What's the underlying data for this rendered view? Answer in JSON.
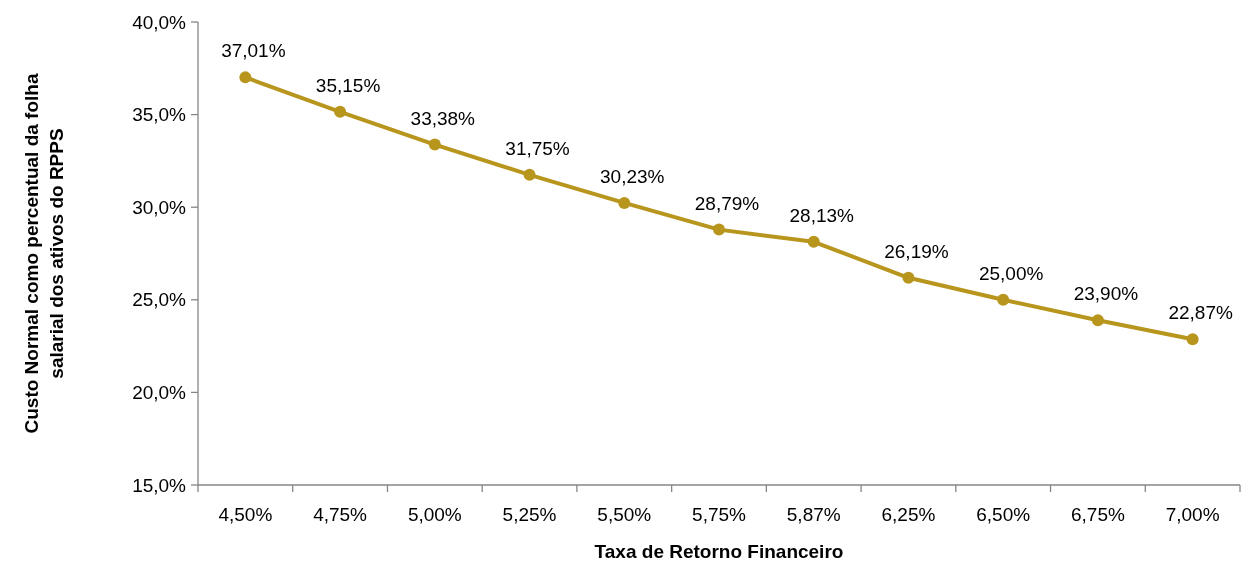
{
  "chart_data": {
    "type": "line",
    "xlabel": "Taxa de Retorno Financeiro",
    "ylabel": "Custo Normal como percentual da folha salarial dos ativos do RPPS",
    "categories": [
      "4,50%",
      "4,75%",
      "5,00%",
      "5,25%",
      "5,50%",
      "5,75%",
      "5,87%",
      "6,25%",
      "6,50%",
      "6,75%",
      "7,00%"
    ],
    "series": [
      {
        "color": "#b8961e",
        "values": [
          37.01,
          35.15,
          33.38,
          31.75,
          30.23,
          28.79,
          28.13,
          26.19,
          25.0,
          23.9,
          22.87
        ],
        "value_labels": [
          "37,01%",
          "35,15%",
          "33,38%",
          "31,75%",
          "30,23%",
          "28,79%",
          "28,13%",
          "26,19%",
          "25,00%",
          "23,90%",
          "22,87%"
        ]
      }
    ],
    "ylim": [
      15,
      40
    ],
    "yticks": [
      {
        "value": 15,
        "label": "15,0%"
      },
      {
        "value": 20,
        "label": "20,0%"
      },
      {
        "value": 25,
        "label": "25,0%"
      },
      {
        "value": 30,
        "label": "30,0%"
      },
      {
        "value": 35,
        "label": "35,0%"
      },
      {
        "value": 40,
        "label": "40,0%"
      }
    ],
    "grid": false,
    "marker": "circle",
    "line_style": "solid"
  }
}
